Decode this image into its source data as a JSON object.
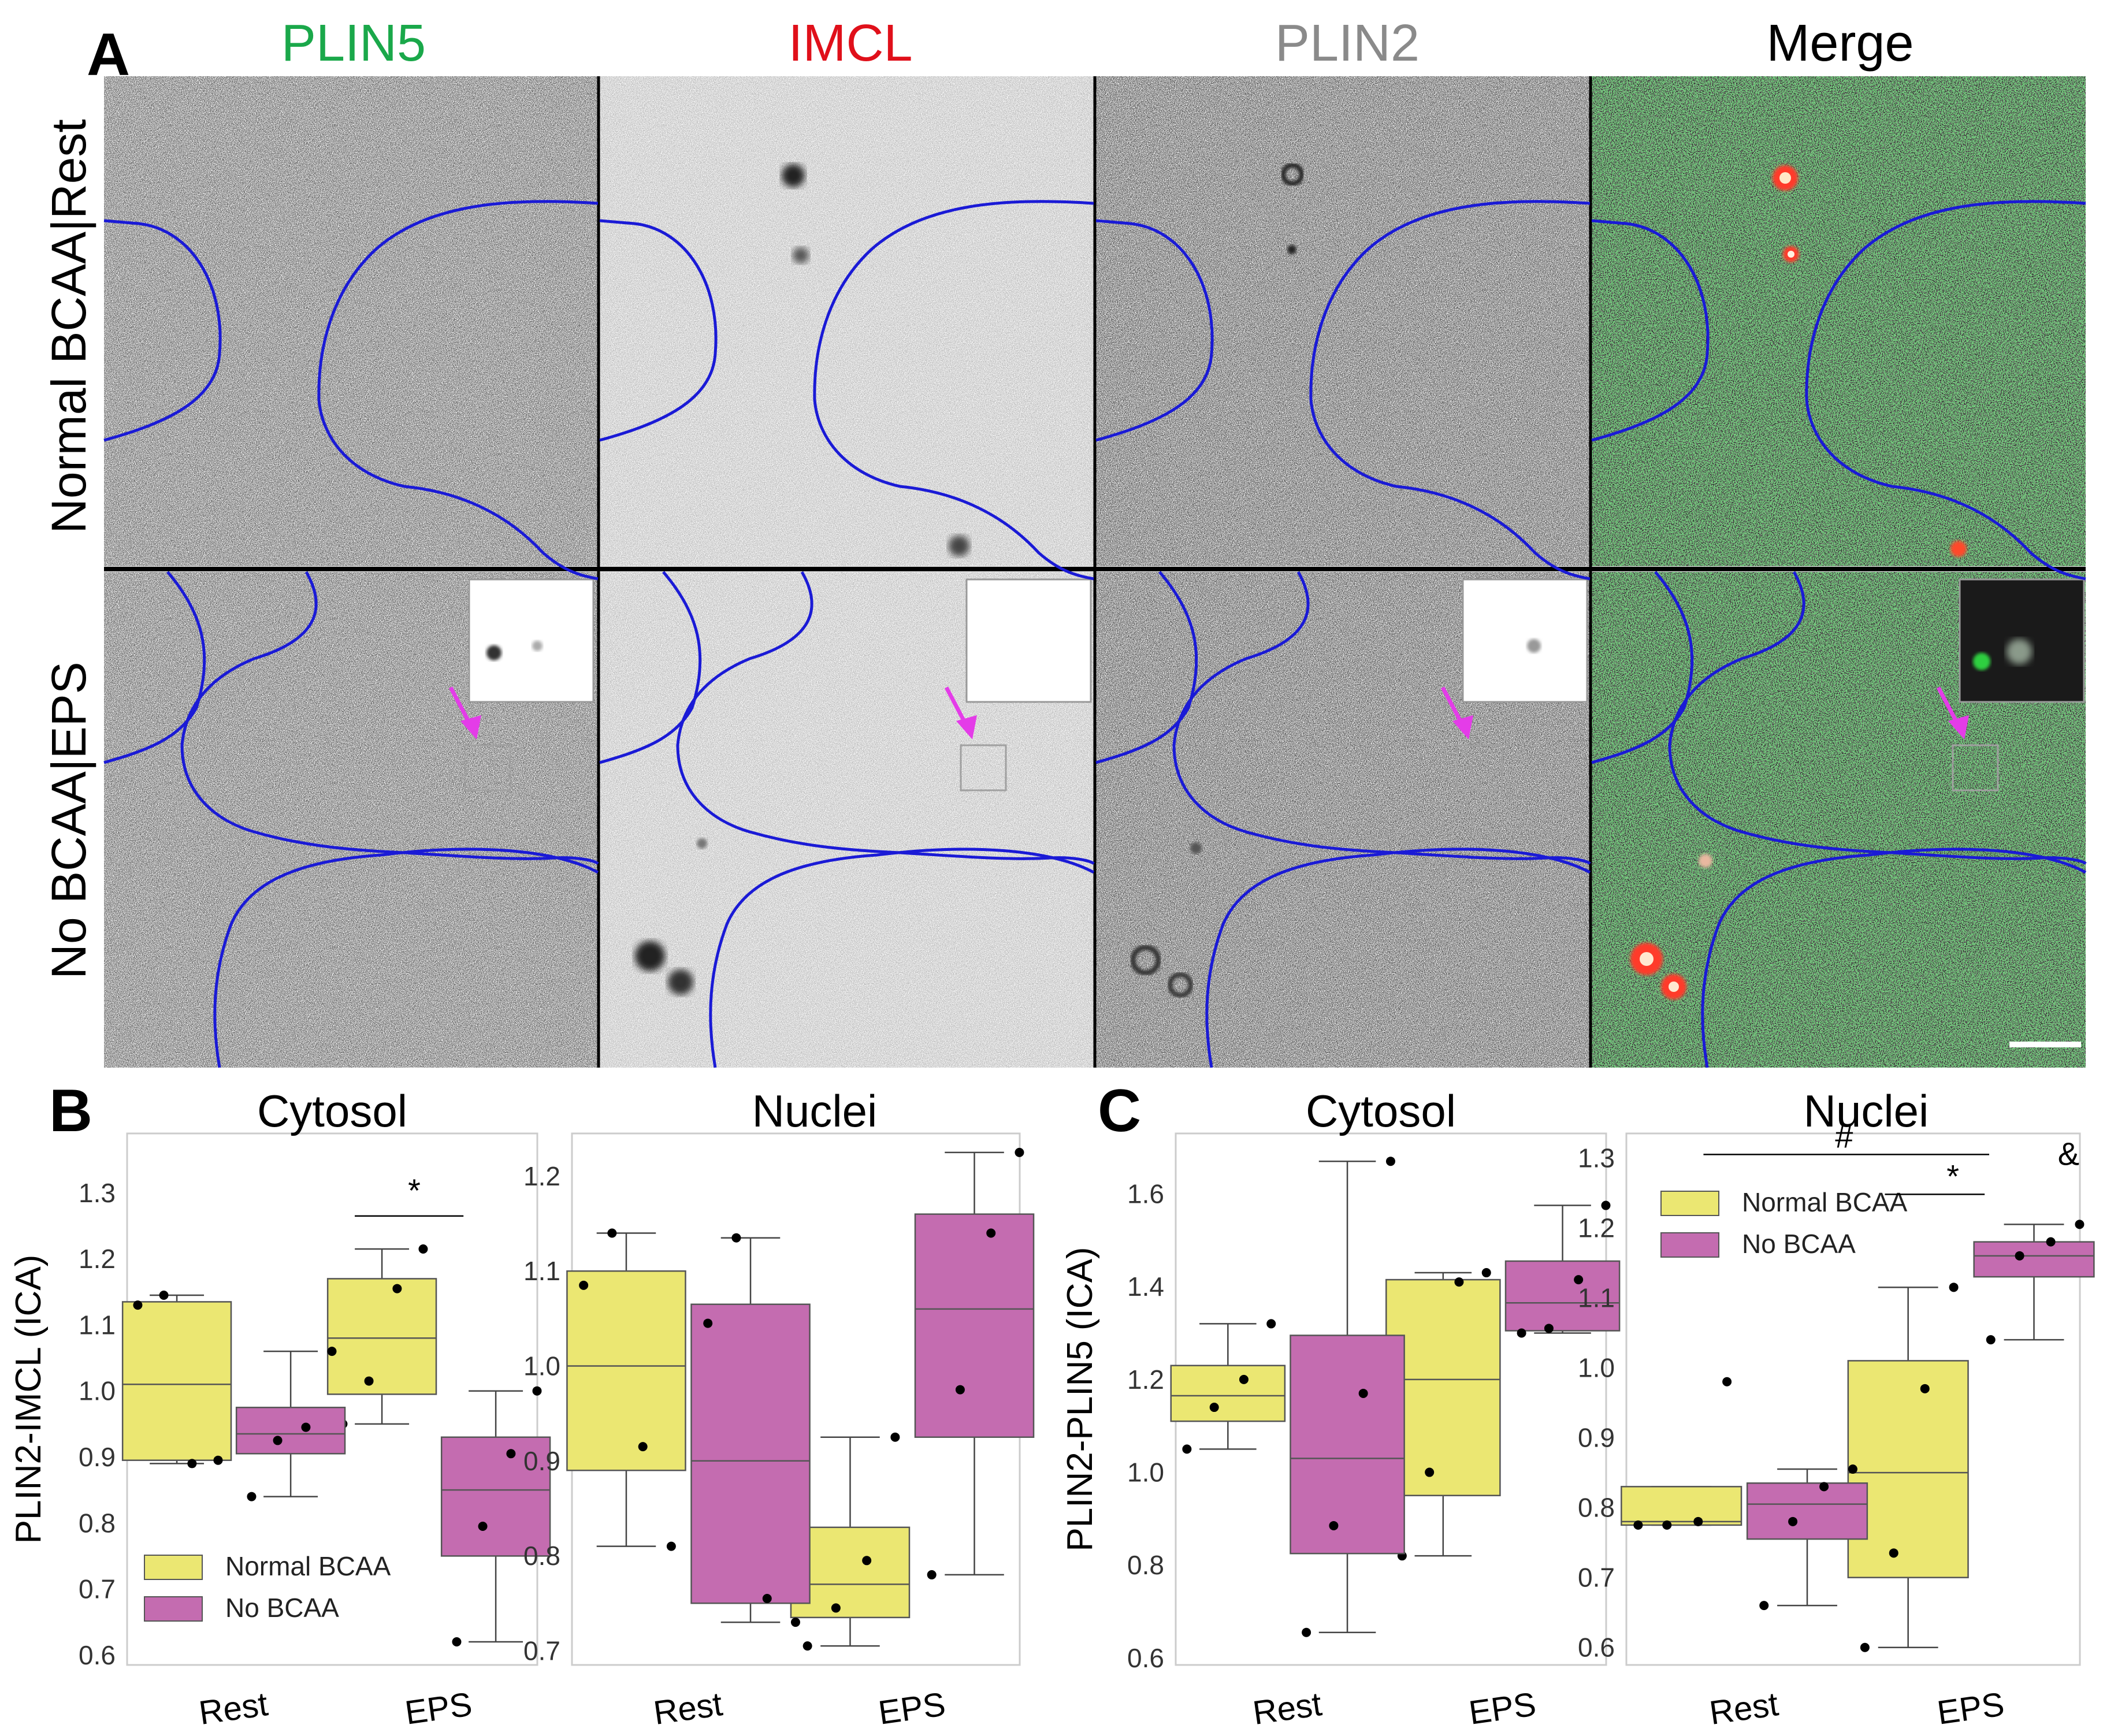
{
  "panel_a": {
    "letter": "A",
    "columns": [
      {
        "label": "PLIN5",
        "color": "#1aa84a"
      },
      {
        "label": "IMCL",
        "color": "#e0101a"
      },
      {
        "label": "PLIN2",
        "color": "#8a8a8a"
      },
      {
        "label": "Merge",
        "color": "#000000"
      }
    ],
    "rows": [
      "Normal BCAA|Rest",
      "No BCAA|EPS"
    ]
  },
  "colors": {
    "normal": "#ebe772",
    "nobcaa": "#c46cb0",
    "nucleus": "#1a1ad6",
    "arrow": "#e43ce8"
  },
  "legend": {
    "normal": "Normal BCAA",
    "nobcaa": "No BCAA"
  },
  "panel_b_letter": "B",
  "panel_c_letter": "C",
  "chart_data": [
    {
      "type": "box",
      "panel": "B",
      "title": "Cytosol",
      "ylabel": "PLIN2-IMCL  (ICA)",
      "ylim": [
        0.585,
        1.39
      ],
      "yticks": [
        "0.6",
        "0.7",
        "0.8",
        "0.9",
        "1.0",
        "1.1",
        "1.2",
        "1.3"
      ],
      "categories": [
        "Rest",
        "EPS"
      ],
      "legend": "bottom-left",
      "series": [
        {
          "name": "Normal BCAA",
          "boxes": [
            {
              "whislo": 0.89,
              "q1": 0.895,
              "med": 1.01,
              "q3": 1.135,
              "whishi": 1.145,
              "points": [
                1.13,
                1.145,
                0.89,
                0.895
              ]
            },
            {
              "whislo": 0.95,
              "q1": 0.995,
              "med": 1.08,
              "q3": 1.17,
              "whishi": 1.215,
              "points": [
                0.95,
                1.015,
                1.155,
                1.215
              ]
            }
          ]
        },
        {
          "name": "No BCAA",
          "boxes": [
            {
              "whislo": 0.84,
              "q1": 0.905,
              "med": 0.935,
              "q3": 0.975,
              "whishi": 1.06,
              "points": [
                0.84,
                0.925,
                0.945,
                1.06
              ]
            },
            {
              "whislo": 0.62,
              "q1": 0.75,
              "med": 0.85,
              "q3": 0.93,
              "whishi": 1.0,
              "points": [
                0.62,
                0.795,
                0.905,
                1.0
              ]
            }
          ]
        }
      ],
      "annotations": [
        {
          "text": "*",
          "between": "EPS"
        }
      ]
    },
    {
      "type": "box",
      "panel": "B",
      "title": "Nuclei",
      "ylabel": "",
      "ylim": [
        0.685,
        1.245
      ],
      "yticks": [
        "0.7",
        "0.8",
        "0.9",
        "1.0",
        "1.1",
        "1.2"
      ],
      "categories": [
        "Rest",
        "EPS"
      ],
      "series": [
        {
          "name": "Normal BCAA",
          "boxes": [
            {
              "whislo": 0.81,
              "q1": 0.89,
              "med": 1.0,
              "q3": 1.1,
              "whishi": 1.14,
              "points": [
                1.085,
                1.14,
                0.915,
                0.81
              ]
            },
            {
              "whislo": 0.705,
              "q1": 0.735,
              "med": 0.77,
              "q3": 0.83,
              "whishi": 0.925,
              "points": [
                0.705,
                0.745,
                0.795,
                0.925
              ]
            }
          ]
        },
        {
          "name": "No BCAA",
          "boxes": [
            {
              "whislo": 0.73,
              "q1": 0.75,
              "med": 0.9,
              "q3": 1.065,
              "whishi": 1.135,
              "points": [
                1.045,
                1.135,
                0.755,
                0.73
              ]
            },
            {
              "whislo": 0.78,
              "q1": 0.925,
              "med": 1.06,
              "q3": 1.16,
              "whishi": 1.225,
              "points": [
                0.78,
                0.975,
                1.14,
                1.225
              ]
            }
          ]
        }
      ]
    },
    {
      "type": "box",
      "panel": "C",
      "title": "Cytosol",
      "ylabel": "PLIN2-PLIN5 (ICA)",
      "ylim": [
        0.585,
        1.73
      ],
      "yticks": [
        "0.6",
        "0.8",
        "1.0",
        "1.2",
        "1.4",
        "1.6"
      ],
      "categories": [
        "Rest",
        "EPS"
      ],
      "series": [
        {
          "name": "Normal BCAA",
          "boxes": [
            {
              "whislo": 1.05,
              "q1": 1.11,
              "med": 1.165,
              "q3": 1.23,
              "whishi": 1.32,
              "points": [
                1.05,
                1.14,
                1.2,
                1.32
              ]
            },
            {
              "whislo": 0.82,
              "q1": 0.95,
              "med": 1.2,
              "q3": 1.415,
              "whishi": 1.43,
              "points": [
                0.82,
                1.0,
                1.41,
                1.43
              ]
            }
          ]
        },
        {
          "name": "No BCAA",
          "boxes": [
            {
              "whislo": 0.655,
              "q1": 0.825,
              "med": 1.03,
              "q3": 1.295,
              "whishi": 1.67,
              "points": [
                0.655,
                0.885,
                1.17,
                1.67
              ]
            },
            {
              "whislo": 1.3,
              "q1": 1.305,
              "med": 1.365,
              "q3": 1.455,
              "whishi": 1.575,
              "points": [
                1.3,
                1.31,
                1.415,
                1.575
              ]
            }
          ]
        }
      ]
    },
    {
      "type": "box",
      "panel": "C",
      "title": "Nuclei",
      "ylabel": "",
      "ylim": [
        0.575,
        1.335
      ],
      "yticks": [
        "0.6",
        "0.7",
        "0.8",
        "0.9",
        "1.0",
        "1.1",
        "1.2",
        "1.3"
      ],
      "categories": [
        "Rest",
        "EPS"
      ],
      "legend": "top-left",
      "series": [
        {
          "name": "Normal BCAA",
          "boxes": [
            {
              "whislo": 0.775,
              "q1": 0.775,
              "med": 0.78,
              "q3": 0.83,
              "whishi": 0.83,
              "points": [
                0.775,
                0.775,
                0.78,
                0.98
              ]
            },
            {
              "whislo": 0.6,
              "q1": 0.7,
              "med": 0.85,
              "q3": 1.01,
              "whishi": 1.115,
              "points": [
                0.6,
                0.735,
                0.97,
                1.115
              ]
            }
          ]
        },
        {
          "name": "No BCAA",
          "boxes": [
            {
              "whislo": 0.66,
              "q1": 0.755,
              "med": 0.805,
              "q3": 0.835,
              "whishi": 0.855,
              "points": [
                0.66,
                0.78,
                0.83,
                0.855
              ]
            },
            {
              "whislo": 1.04,
              "q1": 1.13,
              "med": 1.16,
              "q3": 1.18,
              "whishi": 1.205,
              "points": [
                1.04,
                1.16,
                1.18,
                1.205
              ]
            }
          ]
        }
      ],
      "annotations": [
        {
          "text": "#"
        },
        {
          "text": "*"
        },
        {
          "text": "&"
        }
      ]
    }
  ]
}
